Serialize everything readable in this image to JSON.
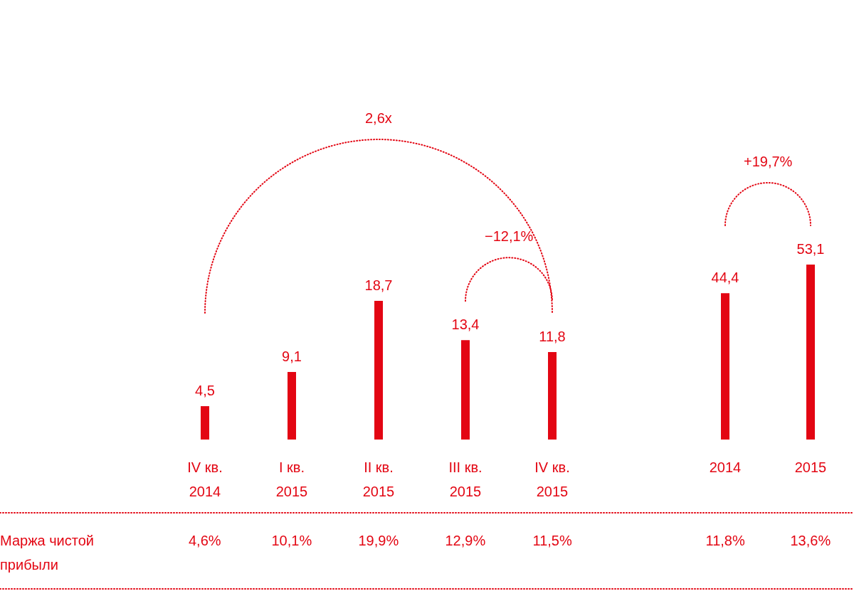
{
  "chart_data": [
    {
      "type": "bar",
      "categories": [
        "IV кв.\n2014",
        "I кв.\n2015",
        "II кв.\n2015",
        "III кв.\n2015",
        "IV кв.\n2015"
      ],
      "values": [
        4.5,
        9.1,
        18.7,
        13.4,
        11.8
      ],
      "value_labels": [
        "4,5",
        "9,1",
        "18,7",
        "13,4",
        "11,8"
      ],
      "color": "#e30613",
      "tick_labels": "x",
      "annotations": [
        "2,6x",
        "−12,1%",
        "Маржа чистой прибыли",
        "4,6%",
        "10,1%",
        "19,9%",
        "12,9%",
        "11,5%"
      ]
    },
    {
      "type": "bar",
      "categories": [
        "2014",
        "2015"
      ],
      "values": [
        44.4,
        53.1
      ],
      "value_labels": [
        "44,4",
        "53,1"
      ],
      "color": "#e30613",
      "tick_labels": "x",
      "annotations": [
        "+19,7%",
        "11,8%",
        "13,6%"
      ]
    }
  ]
}
